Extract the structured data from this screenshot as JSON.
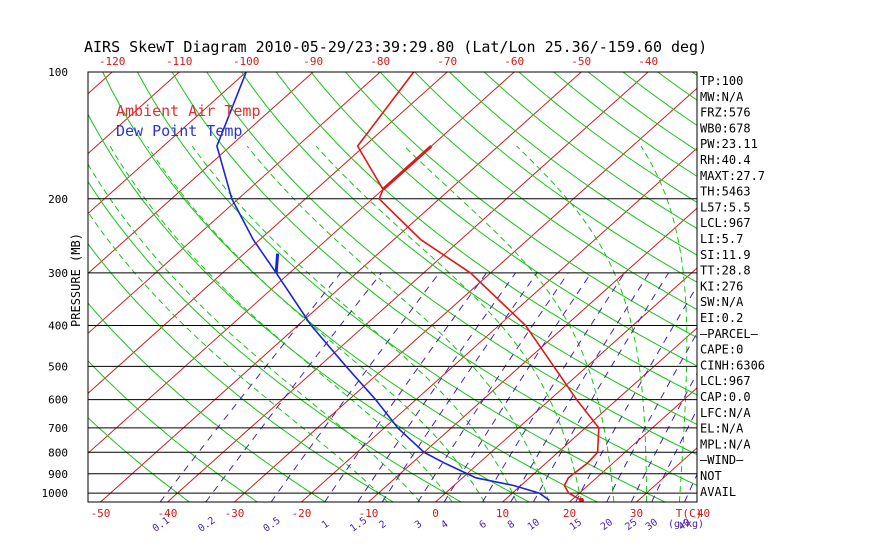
{
  "title": "AIRS SkewT Diagram 2010-05-29/23:39:29.80 (Lat/Lon 25.36/-159.60 deg)",
  "legend": [
    {
      "label": "Ambient Air Temp",
      "color": "#e03030"
    },
    {
      "label": "Dew Point Temp",
      "color": "#2a33d6"
    }
  ],
  "colors": {
    "isotherm": "#cc2020",
    "dry_adiabat": "#18c418",
    "moist_adiabat": "#18c418",
    "mixing_ratio": "#4a1fb0",
    "pressure_line": "#000000",
    "temperature": "#e01818",
    "dewpoint": "#1a25d8",
    "axis_text_red": "#cc1a1a",
    "axis_text_purple": "#4a1fb0"
  },
  "stats": [
    "TP:100",
    "MW:N/A",
    "FRZ:576",
    "WB0:678",
    "PW:23.11",
    "RH:40.4",
    "MAXT:27.7",
    "TH:5463",
    "L57:5.5",
    "LCL:967",
    "LI:5.7",
    "SI:11.9",
    "TT:28.8",
    "KI:276",
    "SW:N/A",
    "EI:0.2",
    "—PARCEL—",
    "CAPE:0",
    "CINH:6306",
    "LCL:967",
    "CAP:0.0",
    "LFC:N/A",
    "EL:N/A",
    "MPL:N/A",
    "—WIND—",
    "NOT",
    "AVAIL"
  ],
  "chart_data": {
    "type": "line",
    "title": "AIRS SkewT Diagram 2010-05-29/23:39:29.80 (Lat/Lon 25.36/-159.60 deg)",
    "ylabel": "PRESSURE (MB)",
    "xlabel_unit": "T(C)",
    "mixing_ratio_unit": "(g/kg)",
    "pressure_log_scale": true,
    "plim": [
      1050,
      100
    ],
    "pressure_levels": [
      100,
      200,
      300,
      400,
      500,
      600,
      700,
      800,
      900,
      1000
    ],
    "top_temp_ticks": [
      -120,
      -110,
      -100,
      -90,
      -80,
      -70,
      -60,
      -50,
      -40
    ],
    "bottom_temp_ticks": [
      -50,
      -40,
      -30,
      -20,
      -10,
      0,
      10,
      20,
      30,
      40
    ],
    "mixing_ratio_labels": [
      "0.1",
      "0.2",
      "0.5",
      "1",
      "1.5",
      "2",
      "3",
      "4",
      "6",
      "8",
      "10",
      "15",
      "20",
      "25",
      "30",
      "40"
    ],
    "series": [
      {
        "name": "Ambient Air Temp",
        "points": [
          {
            "p": 1040,
            "t": 21.5
          },
          {
            "p": 1000,
            "t": 18.4
          },
          {
            "p": 960,
            "t": 16.5
          },
          {
            "p": 920,
            "t": 15.8
          },
          {
            "p": 850,
            "t": 16.2
          },
          {
            "p": 800,
            "t": 15.9
          },
          {
            "p": 700,
            "t": 12.0
          },
          {
            "p": 600,
            "t": 4.0
          },
          {
            "p": 500,
            "t": -5.0
          },
          {
            "p": 400,
            "t": -16.0
          },
          {
            "p": 300,
            "t": -33.0
          },
          {
            "p": 250,
            "t": -46.0
          },
          {
            "p": 200,
            "t": -59.0
          },
          {
            "p": 190,
            "t": -60.0
          },
          {
            "p": 150,
            "t": -71.0
          },
          {
            "p": 100,
            "t": -75.0
          }
        ]
      },
      {
        "name": "Dew Point Temp",
        "points": [
          {
            "p": 1040,
            "t": 16.7
          },
          {
            "p": 1000,
            "t": 14.0
          },
          {
            "p": 960,
            "t": 9.0
          },
          {
            "p": 920,
            "t": 2.0
          },
          {
            "p": 850,
            "t": -5.0
          },
          {
            "p": 800,
            "t": -10.0
          },
          {
            "p": 700,
            "t": -18.0
          },
          {
            "p": 600,
            "t": -26.0
          },
          {
            "p": 500,
            "t": -36.0
          },
          {
            "p": 400,
            "t": -48.0
          },
          {
            "p": 300,
            "t": -62.0
          },
          {
            "p": 250,
            "t": -71.0
          },
          {
            "p": 200,
            "t": -81.0
          },
          {
            "p": 150,
            "t": -92.0
          },
          {
            "p": 100,
            "t": -100.0
          }
        ]
      }
    ]
  }
}
